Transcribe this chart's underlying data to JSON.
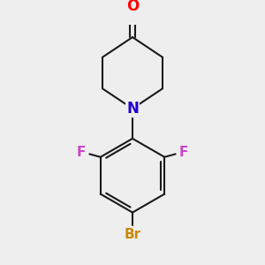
{
  "background_color": "#eeeeee",
  "bond_color": "#1a1a1a",
  "atom_colors": {
    "O": "#ff0000",
    "N": "#2200cc",
    "F": "#cc44cc",
    "Br": "#cc8800"
  },
  "bond_width": 1.5,
  "figsize": [
    3.0,
    3.0
  ],
  "dpi": 100,
  "xlim": [
    -1.8,
    1.8
  ],
  "ylim": [
    -2.6,
    2.2
  ]
}
